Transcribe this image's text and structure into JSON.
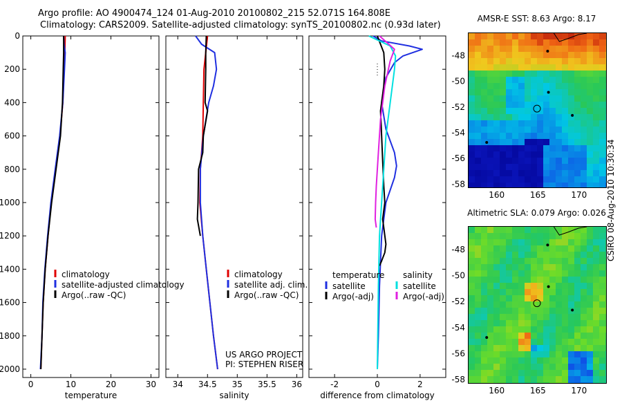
{
  "header": {
    "line1": "Argo profile: AO 4900474_124 01-Aug-2010 20100802_215 52.071S 164.808E",
    "line2": "Climatology: CARS2009. Satellite-adjusted climatology: synTS_20100802.nc (0.93d later)"
  },
  "credit": "CSIRO 08-Aug-2010 10:30:34",
  "colors": {
    "red": "#e00000",
    "blue": "#1f2fe0",
    "black": "#000000",
    "cyan": "#00e0e0",
    "magenta": "#e020e0"
  },
  "chart_data": [
    {
      "type": "line",
      "xlabel": "temperature",
      "xlim": [
        -2,
        32
      ],
      "xticks": [
        "0",
        "10",
        "20",
        "30"
      ],
      "xtick_values": [
        0,
        10,
        20,
        30
      ],
      "ylim": [
        2050,
        0
      ],
      "yticks": [
        "0",
        "200",
        "400",
        "600",
        "800",
        "1000",
        "1200",
        "1400",
        "1600",
        "1800",
        "2000"
      ],
      "ytick_values": [
        0,
        200,
        400,
        600,
        800,
        1000,
        1200,
        1400,
        1600,
        1800,
        2000
      ],
      "legend": [
        "climatology",
        "satellite-adjusted climatology",
        "Argo(..raw -QC)"
      ],
      "legend_colors": [
        "red",
        "blue",
        "black"
      ],
      "series": [
        {
          "name": "climatology",
          "color": "red",
          "x": [
            8.6,
            8.5,
            8.3,
            8.0,
            7.3,
            6.2,
            5.1,
            4.3,
            3.6,
            3.1,
            2.8,
            2.5
          ],
          "y": [
            0,
            100,
            200,
            400,
            600,
            800,
            1000,
            1200,
            1400,
            1600,
            1800,
            2000
          ]
        },
        {
          "name": "satellite-adjusted climatology",
          "color": "blue",
          "x": [
            8.2,
            8.3,
            8.6,
            8.4,
            8.0,
            7.2,
            6.1,
            5.0,
            4.2,
            3.5,
            3.0,
            2.8,
            2.4
          ],
          "y": [
            0,
            50,
            100,
            200,
            400,
            600,
            800,
            1000,
            1200,
            1400,
            1600,
            1800,
            2000
          ]
        },
        {
          "name": "Argo(..raw -QC)",
          "color": "black",
          "x": [
            8.2,
            8.2,
            8.1,
            7.9,
            7.4,
            6.3,
            5.2,
            4.3,
            3.6,
            3.1,
            2.8,
            2.5
          ],
          "y": [
            0,
            100,
            200,
            400,
            600,
            800,
            1000,
            1200,
            1400,
            1600,
            1800,
            2000
          ]
        }
      ]
    },
    {
      "type": "line",
      "xlabel": "salinity",
      "xlim": [
        33.8,
        36.1
      ],
      "xticks": [
        "34",
        "34.5",
        "35",
        "35.5",
        "36"
      ],
      "xtick_values": [
        34,
        34.5,
        35,
        35.5,
        36
      ],
      "ylim": [
        2050,
        0
      ],
      "legend": [
        "climatology",
        "satellite adj. clim.",
        "Argo(..raw -QC)"
      ],
      "legend_colors": [
        "red",
        "blue",
        "black"
      ],
      "annotation": [
        "US ARGO PROJECT",
        "PI: STEPHEN RISER"
      ],
      "series": [
        {
          "name": "climatology",
          "color": "red",
          "x": [
            34.5,
            34.47,
            34.44,
            34.43,
            34.42,
            34.38,
            34.37,
            34.42,
            34.48,
            34.54,
            34.6,
            34.67
          ],
          "y": [
            0,
            100,
            200,
            400,
            600,
            800,
            1000,
            1200,
            1400,
            1600,
            1800,
            2000
          ]
        },
        {
          "name": "satellite adj. clim.",
          "color": "blue",
          "x": [
            34.3,
            34.4,
            34.62,
            34.65,
            34.6,
            34.52,
            34.43,
            34.38,
            34.38,
            34.42,
            34.48,
            34.54,
            34.6,
            34.67
          ],
          "y": [
            0,
            50,
            100,
            200,
            300,
            400,
            600,
            800,
            1000,
            1200,
            1400,
            1600,
            1800,
            2000
          ]
        },
        {
          "name": "Argo(..raw -QC)",
          "color": "black",
          "x": [
            34.48,
            34.47,
            34.47,
            34.46,
            34.5,
            34.43,
            34.42,
            34.35,
            34.34,
            34.33,
            34.38
          ],
          "y": [
            0,
            100,
            200,
            400,
            450,
            600,
            700,
            800,
            1000,
            1100,
            1200
          ],
          "dashed_from": 1200
        }
      ]
    },
    {
      "type": "line",
      "xlabel": "difference from climatology",
      "xlim": [
        -3.2,
        3.2
      ],
      "xticks": [
        "-2",
        "0",
        "2"
      ],
      "xtick_values": [
        -2,
        0,
        2
      ],
      "ylim": [
        2050,
        0
      ],
      "legend_titles": [
        "temperature",
        "salinity"
      ],
      "legend": [
        "satellite",
        "Argo(-adj)",
        "satellite",
        "Argo(-adj)"
      ],
      "legend_colors": [
        "blue",
        "black",
        "cyan",
        "magenta"
      ],
      "series": [
        {
          "name": "satellite",
          "color": "blue",
          "x": [
            -0.2,
            0.2,
            1.5,
            2.1,
            1.2,
            0.8,
            0.4,
            0.2,
            0.4,
            0.8,
            0.9,
            0.8,
            0.4,
            0.2,
            0.1,
            0.05,
            0
          ],
          "y": [
            0,
            30,
            60,
            80,
            120,
            160,
            250,
            400,
            560,
            700,
            780,
            850,
            1000,
            1200,
            1500,
            1800,
            2000
          ]
        },
        {
          "name": "Argo(-adj)",
          "color": "black",
          "x": [
            0,
            0.3,
            0.35,
            0.3,
            0.15,
            0.2,
            0.25,
            0.3,
            0.35,
            0.25,
            0.3,
            0.4,
            0.35,
            0.2,
            0.1
          ],
          "y": [
            0,
            100,
            200,
            300,
            450,
            600,
            750,
            900,
            1000,
            1100,
            1150,
            1250,
            1300,
            1350,
            1380
          ]
        },
        {
          "name": "satellite",
          "color": "cyan",
          "x": [
            -0.4,
            0.6,
            0.85,
            0.8,
            0.6,
            0.4,
            0.3,
            0.2,
            0.1,
            0.05,
            0.02,
            0
          ],
          "y": [
            0,
            60,
            120,
            200,
            400,
            600,
            800,
            1000,
            1200,
            1500,
            1800,
            2000
          ]
        },
        {
          "name": "Argo(-adj)",
          "color": "magenta",
          "x": [
            0.1,
            0.8,
            0.6,
            0.35,
            0.15,
            0.05,
            -0.05,
            -0.08,
            -0.1,
            -0.05
          ],
          "y": [
            0,
            80,
            150,
            300,
            500,
            700,
            900,
            1000,
            1100,
            1150
          ]
        }
      ]
    }
  ],
  "maps": [
    {
      "title": "AMSR-E SST: 8.63 Argo: 8.17",
      "xticks": [
        "160",
        "165",
        "170"
      ],
      "yticks": [
        "-48",
        "-50",
        "-52",
        "-54",
        "-56",
        "-58"
      ],
      "lon_range": [
        156.5,
        173.2
      ],
      "lat_range": [
        -46.2,
        -58.2
      ],
      "float_position": {
        "lon": 164.808,
        "lat": -52.071
      }
    },
    {
      "title": "Altimetric SLA: 0.079 Argo: 0.026",
      "xticks": [
        "160",
        "165",
        "170"
      ],
      "yticks": [
        "-48",
        "-50",
        "-52",
        "-54",
        "-56",
        "-58"
      ],
      "lon_range": [
        156.5,
        173.2
      ],
      "lat_range": [
        -46.2,
        -58.2
      ],
      "float_position": {
        "lon": 164.808,
        "lat": -52.071
      }
    }
  ]
}
